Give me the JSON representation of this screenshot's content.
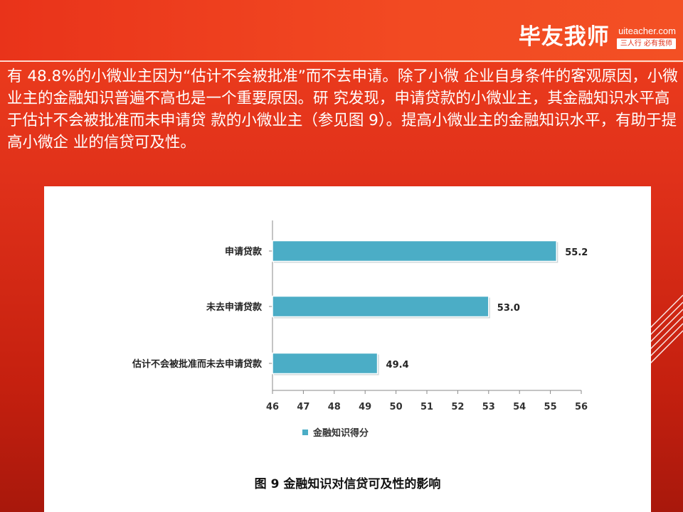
{
  "brand": {
    "name": "毕友我师",
    "url": "uiteacher.com",
    "slogan": "三人行 必有我师"
  },
  "paragraph": "有 48.8%的小微业主因为“估计不会被批准”而不去申请。除了小微 企业自身条件的客观原因，小微业主的金融知识普遍不高也是一个重要原因。研 究发现，申请贷款的小微业主，其金融知识水平高于估计不会被批准而未申请贷 款的小微业主（参见图 9）。提高小微业主的金融知识水平，有助于提高小微企 业的信贷可及性。",
  "chart_data": {
    "type": "bar",
    "orientation": "horizontal",
    "title": "图 9 金融知识对信贷可及性的影响",
    "categories": [
      "申请贷款",
      "未去申请贷款",
      "估计不会被批准而未去申请贷款"
    ],
    "series": [
      {
        "name": "金融知识得分",
        "values": [
          55.2,
          53.0,
          49.4
        ]
      }
    ],
    "value_labels": [
      "55.2",
      "53.0",
      "49.4"
    ],
    "xlim": [
      46,
      56
    ],
    "x_ticks": [
      "46",
      "47",
      "48",
      "49",
      "50",
      "51",
      "52",
      "53",
      "54",
      "55",
      "56"
    ],
    "legend_position": "bottom",
    "grid": false,
    "colors": {
      "bar": "#4badc6",
      "axis": "#888888"
    }
  }
}
